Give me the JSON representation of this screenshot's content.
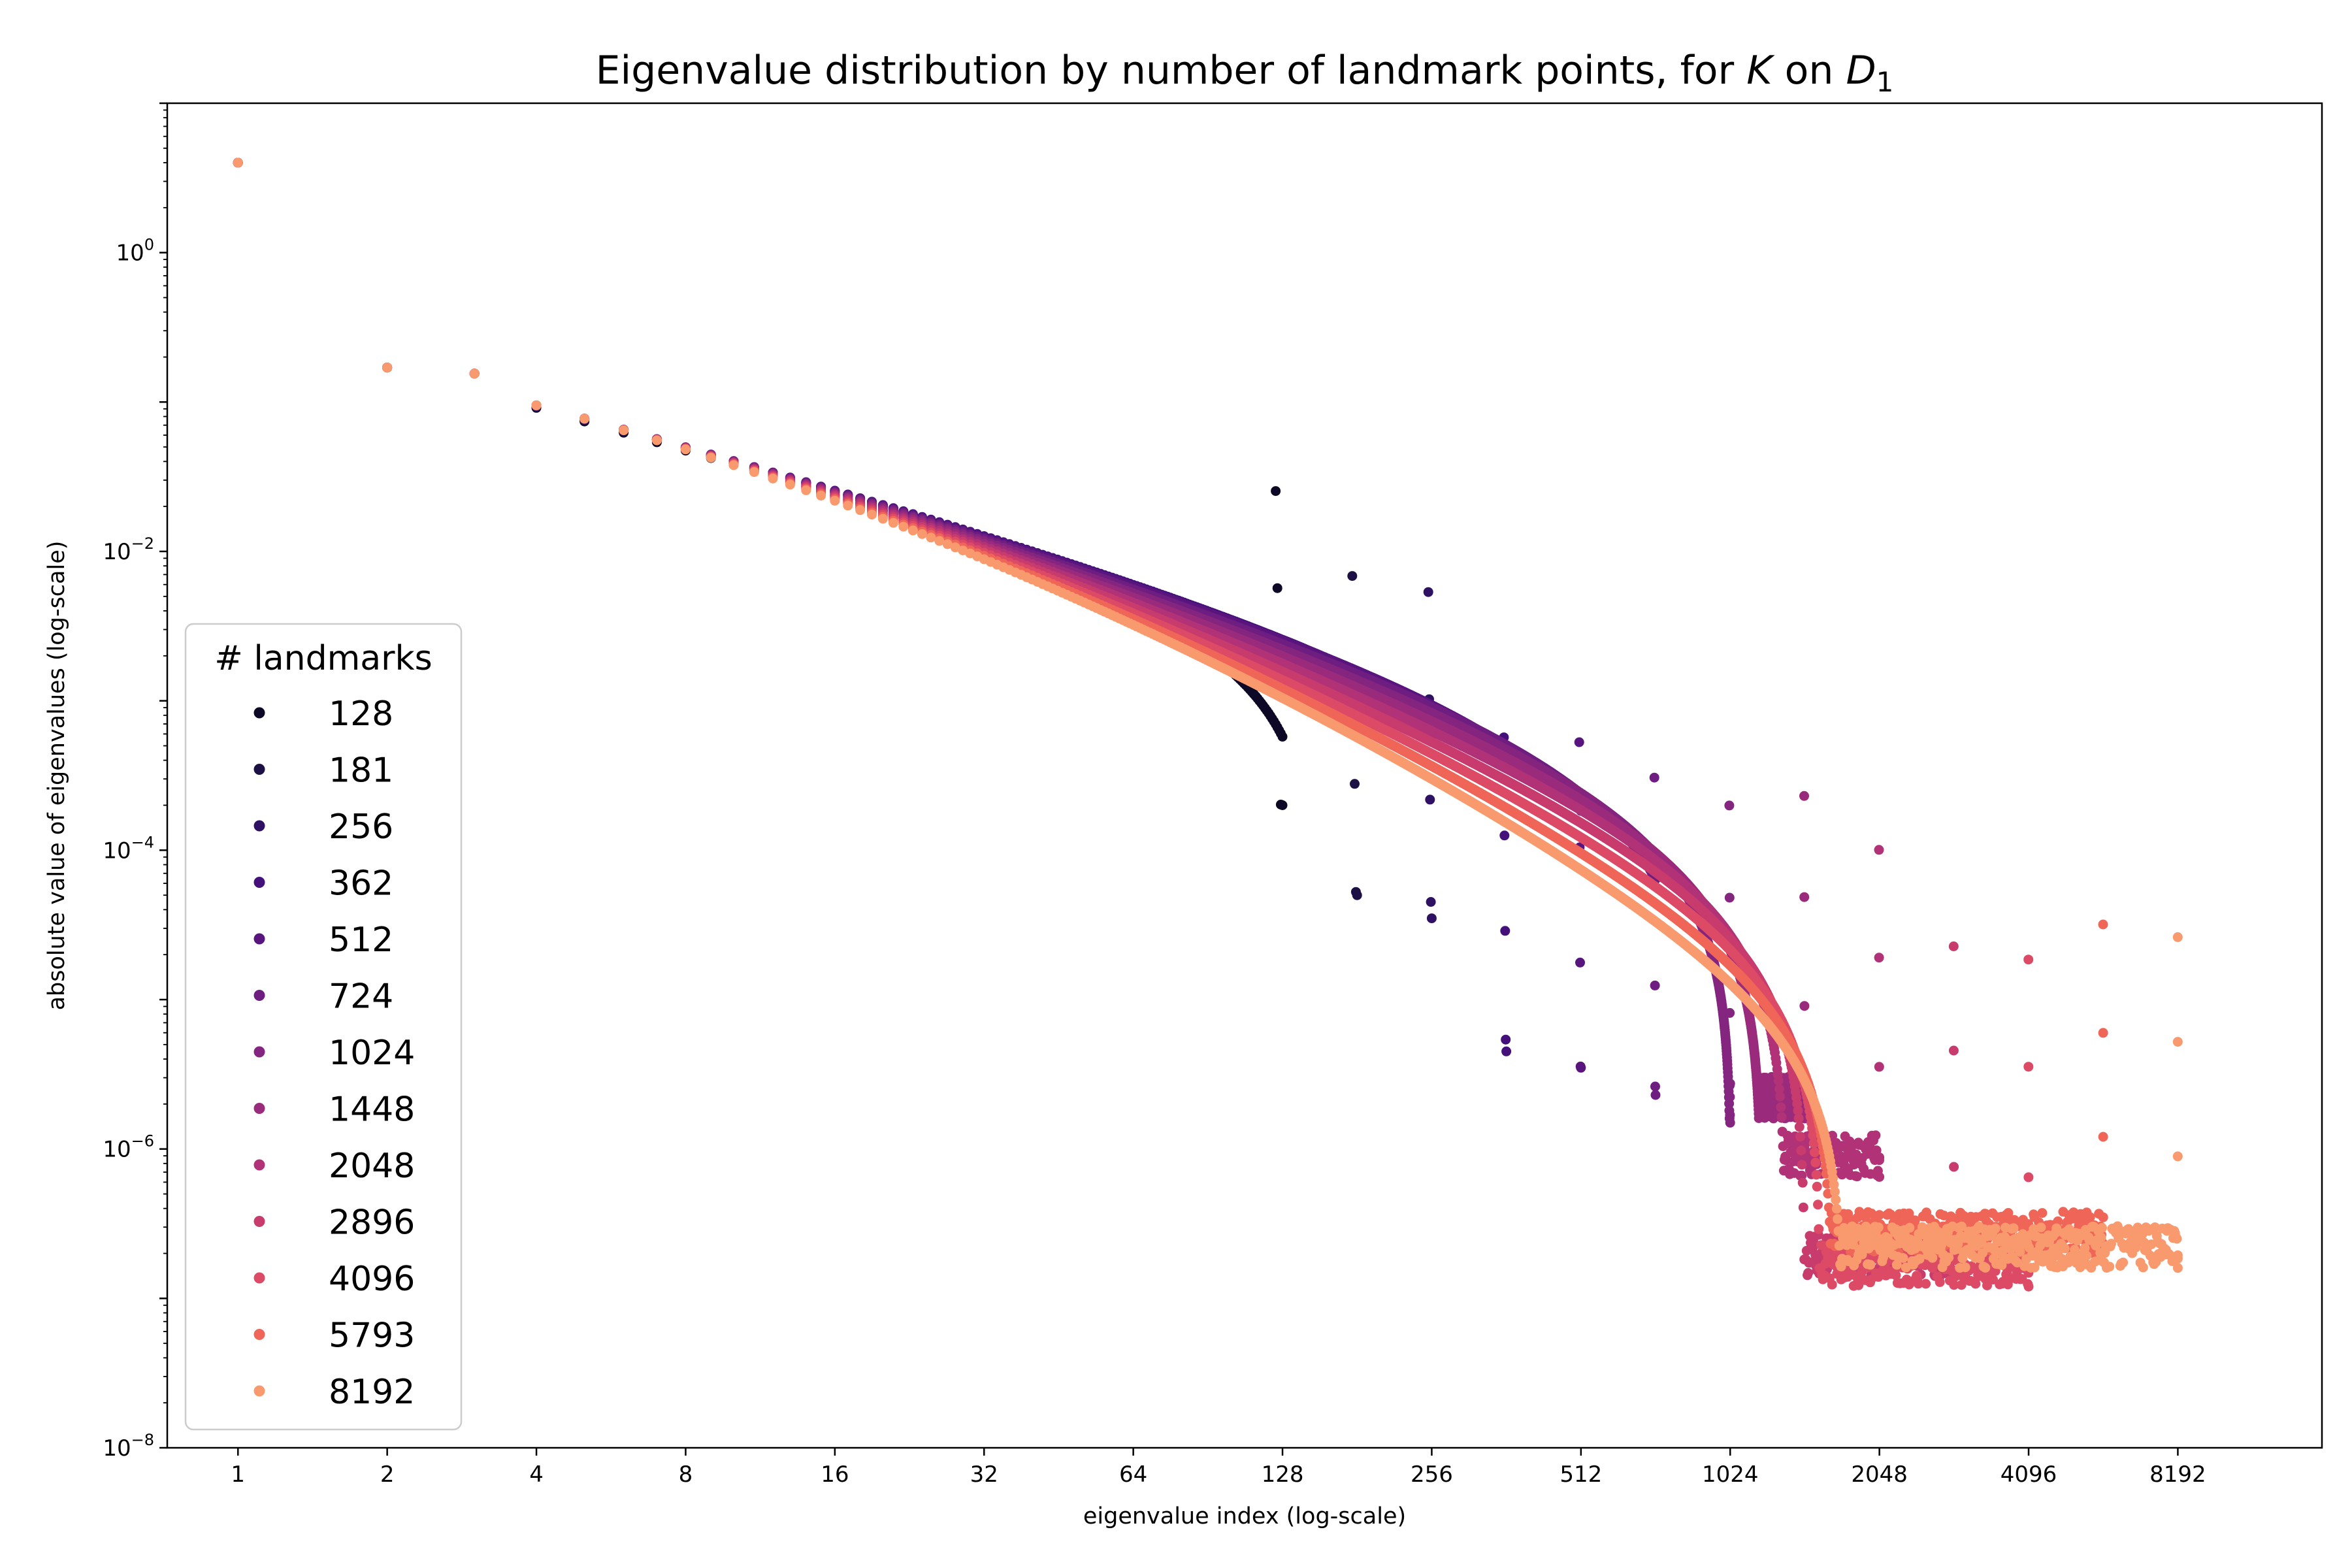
{
  "chart_data": {
    "type": "scatter",
    "title": "Eigenvalue distribution by number of landmark points, for K on D₁",
    "title_parts": [
      "Eigenvalue distribution by number of landmark points, for ",
      "K",
      " on ",
      "D",
      "1"
    ],
    "xlabel": "eigenvalue index (log-scale)",
    "ylabel": "absolute value of eigenvalues (log-scale)",
    "x_scale": "log2",
    "y_scale": "log10",
    "xlim": [
      0.72,
      16000
    ],
    "ylim": [
      1e-08,
      10
    ],
    "x_ticks": [
      1,
      2,
      4,
      8,
      16,
      32,
      64,
      128,
      256,
      512,
      1024,
      2048,
      4096,
      8192
    ],
    "x_tick_labels": [
      "1",
      "2",
      "4",
      "8",
      "16",
      "32",
      "64",
      "128",
      "256",
      "512",
      "1024",
      "2048",
      "4096",
      "8192"
    ],
    "y_ticks": [
      1,
      0.01,
      0.0001,
      1e-06,
      1e-08
    ],
    "y_tick_labels": [
      {
        "base": "10",
        "exp": "0"
      },
      {
        "base": "10",
        "exp": "−2"
      },
      {
        "base": "10",
        "exp": "−4"
      },
      {
        "base": "10",
        "exp": "−6"
      },
      {
        "base": "10",
        "exp": "−8"
      }
    ],
    "grid": false,
    "legend": {
      "title": "# landmarks",
      "placement": "lower-left"
    },
    "series": [
      {
        "name": "128",
        "n": 128,
        "color": "#0c0826",
        "tail_min": 0.0002
      },
      {
        "name": "181",
        "n": 181,
        "color": "#1c1044",
        "tail_min": 5e-05
      },
      {
        "name": "256",
        "n": 256,
        "color": "#2f1163",
        "tail_min": 3.5e-05
      },
      {
        "name": "362",
        "n": 362,
        "color": "#44107a",
        "tail_min": 4.5e-06
      },
      {
        "name": "512",
        "n": 512,
        "color": "#59157e",
        "tail_min": 3.5e-06
      },
      {
        "name": "724",
        "n": 724,
        "color": "#6e1e81",
        "tail_min": 2.3e-06
      },
      {
        "name": "1024",
        "n": 1024,
        "color": "#84257f",
        "tail_min": 1.5e-06
      },
      {
        "name": "1448",
        "n": 1448,
        "color": "#9a2b7c",
        "tail_min": 1.6e-06
      },
      {
        "name": "2048",
        "n": 2048,
        "color": "#b13276",
        "tail_min": 6.5e-07
      },
      {
        "name": "2896",
        "n": 2896,
        "color": "#c83b6d",
        "tail_min": 1.4e-07
      },
      {
        "name": "4096",
        "n": 4096,
        "color": "#dc4a66",
        "tail_min": 1.2e-07
      },
      {
        "name": "5793",
        "n": 5793,
        "color": "#ef6557",
        "tail_min": 2e-07
      },
      {
        "name": "8192",
        "n": 8192,
        "color": "#f89a6e",
        "tail_min": 1.6e-07
      }
    ],
    "common_points": [
      {
        "x": 1,
        "y": 4.0
      },
      {
        "x": 2,
        "y": 0.17
      },
      {
        "x": 3,
        "y": 0.155
      }
    ]
  }
}
